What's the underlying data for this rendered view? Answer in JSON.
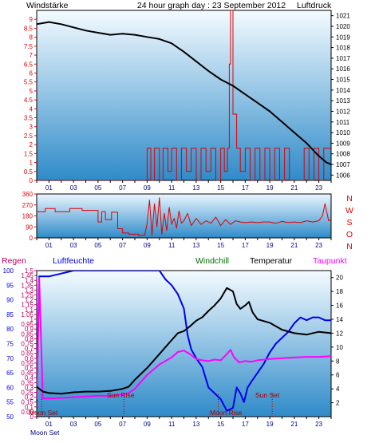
{
  "colors": {
    "wind": "#e00000",
    "pressure": "#000000",
    "direction": "#e00000",
    "humidity": "#0000ee",
    "temperature": "#000000",
    "dewpoint": "#ff00ff",
    "rain": "#c00060",
    "windchill": "#007000",
    "moon": "#000080",
    "sun": "#a00000",
    "title": "#000090"
  },
  "header": {
    "left": "Windstärke",
    "title": "24 hour graph day : 23 September 2012",
    "right": "Luftdruck"
  },
  "panel2": {
    "compass": [
      "N",
      "W",
      "S",
      "O",
      "N"
    ]
  },
  "panel3": {
    "headers": {
      "rain": "Regen",
      "humidity": "Luftfeuchte",
      "windchill": "Windchill",
      "temperature": "Temperatur",
      "dewpoint": "Taupunkt"
    },
    "events": [
      {
        "label": "Moon Set",
        "hour": 0.4
      },
      {
        "label": "Sun Rise",
        "hour": 7.1
      },
      {
        "label": "Moon Rise",
        "hour": 14.8
      },
      {
        "label": "Sun Set",
        "hour": 19.2
      }
    ],
    "bottom_label": "Moon Set"
  },
  "chart_data": [
    {
      "type": "line",
      "title": "24 hour graph day : 23 September 2012",
      "xlabel": "",
      "x_ticks": [
        "01",
        "03",
        "05",
        "07",
        "09",
        "11",
        "13",
        "15",
        "17",
        "19",
        "21",
        "23"
      ],
      "xlim": [
        0,
        24
      ],
      "y_left": {
        "label": "Windstärke",
        "ylim": [
          0,
          9.5
        ],
        "ticks": [
          "0",
          "0.5",
          "1",
          "1.5",
          "2",
          "2.5",
          "3",
          "3.5",
          "4",
          "4.5",
          "5",
          "5.5",
          "6",
          "6.5",
          "7",
          "7.5",
          "8",
          "8.5",
          "9"
        ]
      },
      "y_right": {
        "label": "Luftdruck",
        "ylim": [
          1005.5,
          1021.5
        ],
        "ticks": [
          "1006",
          "1007",
          "1008",
          "1009",
          "1010",
          "1011",
          "1012",
          "1013",
          "1014",
          "1015",
          "1016",
          "1017",
          "1018",
          "1019",
          "1020",
          "1021"
        ]
      },
      "series": [
        {
          "name": "Luftdruck",
          "axis": "right",
          "x": [
            0,
            1,
            2,
            3,
            4,
            5,
            6,
            7,
            8,
            9,
            10,
            11,
            12,
            13,
            14,
            15,
            16,
            17,
            18,
            19,
            20,
            21,
            22,
            23,
            23.6,
            24
          ],
          "values": [
            1020.2,
            1020.4,
            1020.2,
            1019.9,
            1019.6,
            1019.4,
            1019.2,
            1019.3,
            1019.2,
            1019.0,
            1018.8,
            1018.4,
            1017.6,
            1016.7,
            1015.8,
            1015.0,
            1014.4,
            1013.6,
            1012.8,
            1012.0,
            1011.0,
            1010.0,
            1009.0,
            1007.8,
            1007.2,
            1007.0
          ]
        },
        {
          "name": "Windstärke",
          "axis": "left",
          "x": [
            0,
            8.9,
            9.0,
            9.3,
            9.6,
            10.0,
            10.3,
            10.7,
            11.0,
            11.4,
            11.8,
            12.2,
            12.6,
            13.0,
            13.4,
            13.8,
            14.2,
            14.6,
            15.0,
            15.3,
            15.55,
            15.7,
            15.8,
            16.0,
            16.3,
            16.6,
            17.0,
            17.4,
            17.8,
            18.2,
            18.6,
            19.0,
            19.4,
            19.8,
            20.2,
            20.6,
            21.0,
            21.4,
            21.8,
            22.2,
            22.6,
            23.0,
            23.4,
            24.0
          ],
          "values": [
            0,
            0,
            1.8,
            0,
            1.8,
            0,
            1.8,
            0.5,
            1.8,
            0,
            1.8,
            0.5,
            1.8,
            0,
            1.8,
            0.5,
            1.8,
            0,
            1.8,
            0.5,
            1.8,
            6.5,
            9.5,
            3.7,
            1.8,
            0.5,
            1.8,
            0,
            1.8,
            0,
            1.8,
            0,
            1.8,
            0,
            1.8,
            0,
            0,
            0,
            1.8,
            0,
            1.8,
            0,
            1.8,
            1.8
          ]
        }
      ]
    },
    {
      "type": "line",
      "x_ticks": [
        "01",
        "03",
        "05",
        "07",
        "09",
        "11",
        "13",
        "15",
        "17",
        "19",
        "21",
        "23"
      ],
      "xlim": [
        0,
        24
      ],
      "y_left": {
        "ylim": [
          0,
          360
        ],
        "ticks": [
          "0",
          "90",
          "180",
          "270",
          "360"
        ]
      },
      "y_right_labels": [
        "N",
        "W",
        "S",
        "O",
        "N"
      ],
      "series": [
        {
          "name": "Windrichtung",
          "x": [
            0,
            0.7,
            0.7,
            1.5,
            1.5,
            2.7,
            2.7,
            3.7,
            3.7,
            5.0,
            5.0,
            5.3,
            5.3,
            5.6,
            5.6,
            6.1,
            6.1,
            6.6,
            6.6,
            7.0,
            7.0,
            7.5,
            7.5,
            8.3,
            8.3,
            8.8,
            9.0,
            9.2,
            9.4,
            9.6,
            9.8,
            10.0,
            10.2,
            10.4,
            10.6,
            10.8,
            11.0,
            11.2,
            11.4,
            11.6,
            11.8,
            12.0,
            12.3,
            12.6,
            13.0,
            13.4,
            13.8,
            14.2,
            14.6,
            15.0,
            15.4,
            15.8,
            16.2,
            16.6,
            17.0,
            17.5,
            18.0,
            18.5,
            19.0,
            19.5,
            20.0,
            20.5,
            21.0,
            21.5,
            22.0,
            22.5,
            23.0,
            23.3,
            23.5,
            23.8,
            24.0
          ],
          "values": [
            215,
            215,
            240,
            240,
            215,
            215,
            240,
            240,
            225,
            225,
            130,
            130,
            215,
            215,
            150,
            150,
            210,
            210,
            75,
            75,
            40,
            40,
            30,
            30,
            20,
            20,
            120,
            310,
            20,
            280,
            90,
            330,
            30,
            200,
            60,
            250,
            110,
            160,
            80,
            220,
            120,
            140,
            200,
            100,
            160,
            110,
            140,
            120,
            170,
            100,
            150,
            110,
            140,
            130,
            125,
            130,
            125,
            130,
            130,
            120,
            135,
            125,
            130,
            125,
            140,
            130,
            140,
            180,
            280,
            140,
            150
          ]
        }
      ]
    },
    {
      "type": "line",
      "x_ticks": [
        "01",
        "03",
        "05",
        "07",
        "09",
        "11",
        "13",
        "15",
        "17",
        "19",
        "21",
        "23"
      ],
      "xlim": [
        0,
        24
      ],
      "y_left_humidity": {
        "label": "Luftfeuchte",
        "ylim": [
          50,
          100
        ],
        "ticks": [
          "50",
          "55",
          "60",
          "65",
          "70",
          "75",
          "80",
          "85",
          "90",
          "95",
          "100"
        ]
      },
      "y_left_rain": {
        "label": "Regen",
        "ylim": [
          0,
          1.5
        ],
        "ticks": [
          "0",
          "0.05",
          "0.1",
          "0.15",
          "0.2",
          "0.25",
          "0.3",
          "0.35",
          "0.4",
          "0.45",
          "0.5",
          "0.55",
          "0.6",
          "0.65",
          "0.7",
          "0.75",
          "0.8",
          "0.85",
          "0.9",
          "0.95",
          "1",
          "1.05",
          "1.1",
          "1.15",
          "1.2",
          "1.25",
          "1.3",
          "1.35",
          "1.4",
          "1.45",
          "1.5"
        ]
      },
      "y_right": {
        "label": "Temperatur",
        "ylim": [
          0,
          21
        ],
        "ticks": [
          "2",
          "4",
          "6",
          "8",
          "10",
          "12",
          "14",
          "16",
          "18",
          "20"
        ]
      },
      "series": [
        {
          "name": "Luftfeuchte",
          "axis": "humidity",
          "x": [
            0,
            0.2,
            0.5,
            1,
            2,
            3,
            4,
            5,
            5.5,
            6,
            7,
            8,
            9,
            10,
            10.5,
            11,
            11.5,
            12,
            12.3,
            12.6,
            13.0,
            13.5,
            14,
            14.5,
            15,
            15.5,
            16,
            16.3,
            16.6,
            16.9,
            17.2,
            17.5,
            18,
            18.5,
            19,
            19.5,
            20,
            20.5,
            21,
            21.5,
            22,
            22.5,
            23,
            23.5,
            24
          ],
          "values": [
            55,
            98,
            98,
            98,
            99,
            100,
            100,
            100,
            100,
            100,
            100,
            100,
            100,
            100,
            97,
            95,
            92,
            87,
            78,
            73,
            70,
            67,
            60,
            58,
            56,
            52,
            53,
            60,
            58,
            55,
            60,
            62,
            65,
            68,
            72,
            75,
            77,
            79,
            82,
            84,
            83,
            84,
            84,
            83,
            83
          ]
        },
        {
          "name": "Temperatur",
          "axis": "temperature",
          "x": [
            0,
            0.5,
            1,
            2,
            3,
            4,
            5,
            6,
            7,
            7.5,
            8,
            9,
            10,
            10.5,
            11,
            11.5,
            12,
            12.5,
            13,
            13.5,
            14,
            14.5,
            15,
            15.5,
            16,
            16.3,
            16.6,
            17,
            17.3,
            17.6,
            18,
            19,
            20,
            21,
            22,
            23,
            24
          ],
          "values": [
            4.3,
            3.6,
            3.4,
            3.3,
            3.5,
            3.6,
            3.6,
            3.7,
            4.0,
            4.3,
            5.3,
            7.0,
            9.0,
            10.0,
            11.0,
            12.0,
            12.3,
            13.0,
            13.8,
            14.3,
            15.2,
            16.0,
            17.0,
            18.5,
            18.0,
            16.2,
            15.5,
            16.0,
            16.5,
            15.0,
            14.0,
            13.5,
            12.5,
            12.0,
            11.8,
            12.2,
            12.0
          ]
        },
        {
          "name": "Taupunkt",
          "axis": "temperature",
          "x": [
            0,
            0.2,
            0.5,
            1,
            2,
            3,
            4,
            5,
            6,
            7,
            7.5,
            8,
            9,
            10,
            11,
            11.5,
            12,
            12.5,
            13,
            13.5,
            14,
            14.5,
            15,
            15.5,
            15.8,
            16.1,
            16.5,
            17,
            17.5,
            18,
            19,
            20,
            21,
            22,
            23,
            24
          ],
          "values": [
            2.5,
            20,
            2.6,
            2.6,
            2.7,
            2.8,
            2.9,
            3.0,
            3.0,
            3.2,
            3.4,
            4.0,
            6.0,
            7.5,
            8.5,
            9.3,
            9.5,
            9.0,
            8.3,
            8.1,
            8.0,
            8.2,
            8.1,
            9.0,
            9.6,
            8.5,
            7.8,
            8.0,
            7.9,
            8.1,
            8.3,
            8.4,
            8.5,
            8.6,
            8.6,
            8.7
          ]
        }
      ]
    }
  ]
}
